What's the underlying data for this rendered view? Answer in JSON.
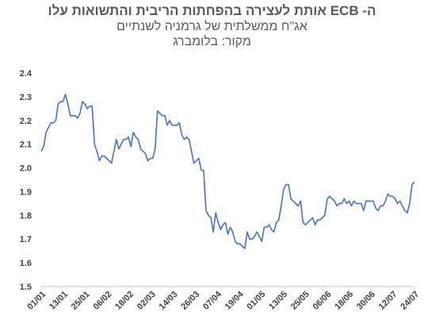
{
  "chart_data": {
    "type": "line",
    "title": "ה- ECB אותת לעצירה בהפחתות הריבית והתשואות עלו",
    "subtitle": "אג\"ח ממשלתית של גרמניה לשנתיים",
    "source": "מקור: בלומברג",
    "xlabel": "",
    "ylabel": "",
    "ylim": [
      1.5,
      2.4
    ],
    "yticks": [
      "1.5",
      "1.6",
      "1.7",
      "1.8",
      "1.9",
      "2.0",
      "2.1",
      "2.2",
      "2.3",
      "2.4"
    ],
    "xticks": [
      "01/01",
      "13/01",
      "25/01",
      "06/02",
      "18/02",
      "02/03",
      "14/03",
      "26/03",
      "07/04",
      "19/04",
      "01/05",
      "13/05",
      "25/05",
      "06/06",
      "18/06",
      "30/06",
      "12/07",
      "24/07"
    ],
    "grid": false,
    "legend": "none",
    "line_color": "#4472C4",
    "series": [
      {
        "values": [
          2.07,
          2.09,
          2.15,
          2.17,
          2.19,
          2.19,
          2.2,
          2.27,
          2.28,
          2.28,
          2.31,
          2.27,
          2.22,
          2.22,
          2.22,
          2.21,
          2.23,
          2.28,
          2.27,
          2.25,
          2.26,
          2.26,
          2.1,
          2.07,
          2.03,
          2.05,
          2.05,
          2.04,
          2.03,
          2.02,
          2.07,
          2.12,
          2.08,
          2.1,
          2.12,
          2.12,
          2.13,
          2.09,
          2.15,
          2.13,
          2.12,
          2.08,
          2.07,
          2.06,
          2.03,
          2.04,
          2.04,
          2.08,
          2.24,
          2.23,
          2.22,
          2.22,
          2.18,
          2.2,
          2.18,
          2.18,
          2.18,
          2.19,
          2.14,
          2.12,
          2.13,
          2.12,
          2.07,
          2.02,
          2.03,
          2.04,
          1.99,
          1.99,
          1.82,
          1.8,
          1.79,
          1.73,
          1.81,
          1.77,
          1.74,
          1.76,
          1.77,
          1.72,
          1.75,
          1.73,
          1.69,
          1.68,
          1.68,
          1.67,
          1.66,
          1.73,
          1.7,
          1.7,
          1.71,
          1.73,
          1.71,
          1.69,
          1.75,
          1.75,
          1.76,
          1.74,
          1.73,
          1.77,
          1.78,
          1.84,
          1.91,
          1.93,
          1.93,
          1.87,
          1.86,
          1.85,
          1.84,
          1.86,
          1.77,
          1.76,
          1.77,
          1.78,
          1.79,
          1.76,
          1.78,
          1.78,
          1.79,
          1.8,
          1.87,
          1.88,
          1.87,
          1.86,
          1.84,
          1.85,
          1.85,
          1.87,
          1.85,
          1.86,
          1.84,
          1.86,
          1.85,
          1.85,
          1.85,
          1.82,
          1.86,
          1.86,
          1.86,
          1.86,
          1.83,
          1.82,
          1.84,
          1.84,
          1.86,
          1.89,
          1.88,
          1.88,
          1.87,
          1.85,
          1.86,
          1.84,
          1.82,
          1.81,
          1.85,
          1.93,
          1.94
        ]
      }
    ]
  }
}
